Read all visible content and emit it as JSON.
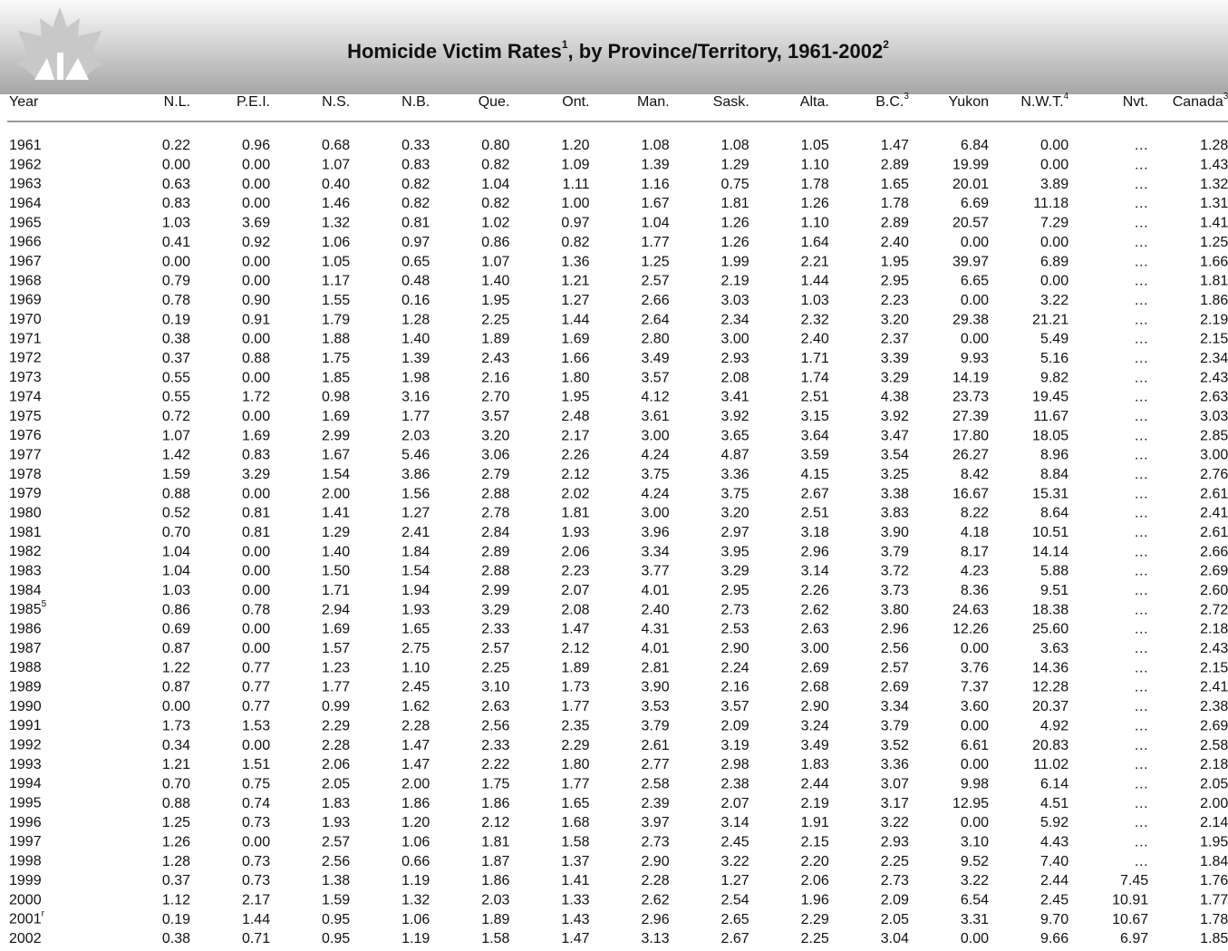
{
  "header": {
    "title": "Homicide Victim Rates",
    "title_note": "1",
    "title_rest": ", by Province/Territory, 1961-2002",
    "title_rest_note": "2"
  },
  "table": {
    "columns": [
      {
        "label": "Year"
      },
      {
        "label": "N.L."
      },
      {
        "label": "P.E.I."
      },
      {
        "label": "N.S."
      },
      {
        "label": "N.B."
      },
      {
        "label": "Que."
      },
      {
        "label": "Ont."
      },
      {
        "label": "Man."
      },
      {
        "label": "Sask."
      },
      {
        "label": "Alta."
      },
      {
        "label": "B.C.",
        "note": "3"
      },
      {
        "label": "Yukon"
      },
      {
        "label": "N.W.T.",
        "note": "4"
      },
      {
        "label": "Nvt."
      },
      {
        "label": "Canada",
        "note": "3"
      }
    ],
    "rows": [
      {
        "year": "1961",
        "cells": [
          "0.22",
          "0.96",
          "0.68",
          "0.33",
          "0.80",
          "1.20",
          "1.08",
          "1.08",
          "1.05",
          "1.47",
          "6.84",
          "0.00",
          "…",
          "1.28"
        ]
      },
      {
        "year": "1962",
        "cells": [
          "0.00",
          "0.00",
          "1.07",
          "0.83",
          "0.82",
          "1.09",
          "1.39",
          "1.29",
          "1.10",
          "2.89",
          "19.99",
          "0.00",
          "…",
          "1.43"
        ]
      },
      {
        "year": "1963",
        "cells": [
          "0.63",
          "0.00",
          "0.40",
          "0.82",
          "1.04",
          "1.11",
          "1.16",
          "0.75",
          "1.78",
          "1.65",
          "20.01",
          "3.89",
          "…",
          "1.32"
        ]
      },
      {
        "year": "1964",
        "cells": [
          "0.83",
          "0.00",
          "1.46",
          "0.82",
          "0.82",
          "1.00",
          "1.67",
          "1.81",
          "1.26",
          "1.78",
          "6.69",
          "11.18",
          "…",
          "1.31"
        ]
      },
      {
        "year": "1965",
        "cells": [
          "1.03",
          "3.69",
          "1.32",
          "0.81",
          "1.02",
          "0.97",
          "1.04",
          "1.26",
          "1.10",
          "2.89",
          "20.57",
          "7.29",
          "…",
          "1.41"
        ]
      },
      {
        "year": "1966",
        "cells": [
          "0.41",
          "0.92",
          "1.06",
          "0.97",
          "0.86",
          "0.82",
          "1.77",
          "1.26",
          "1.64",
          "2.40",
          "0.00",
          "0.00",
          "…",
          "1.25"
        ]
      },
      {
        "year": "1967",
        "cells": [
          "0.00",
          "0.00",
          "1.05",
          "0.65",
          "1.07",
          "1.36",
          "1.25",
          "1.99",
          "2.21",
          "1.95",
          "39.97",
          "6.89",
          "…",
          "1.66"
        ]
      },
      {
        "year": "1968",
        "cells": [
          "0.79",
          "0.00",
          "1.17",
          "0.48",
          "1.40",
          "1.21",
          "2.57",
          "2.19",
          "1.44",
          "2.95",
          "6.65",
          "0.00",
          "…",
          "1.81"
        ]
      },
      {
        "year": "1969",
        "cells": [
          "0.78",
          "0.90",
          "1.55",
          "0.16",
          "1.95",
          "1.27",
          "2.66",
          "3.03",
          "1.03",
          "2.23",
          "0.00",
          "3.22",
          "…",
          "1.86"
        ]
      },
      {
        "year": "1970",
        "cells": [
          "0.19",
          "0.91",
          "1.79",
          "1.28",
          "2.25",
          "1.44",
          "2.64",
          "2.34",
          "2.32",
          "3.20",
          "29.38",
          "21.21",
          "…",
          "2.19"
        ]
      },
      {
        "year": "1971",
        "cells": [
          "0.38",
          "0.00",
          "1.88",
          "1.40",
          "1.89",
          "1.69",
          "2.80",
          "3.00",
          "2.40",
          "2.37",
          "0.00",
          "5.49",
          "…",
          "2.15"
        ]
      },
      {
        "year": "1972",
        "cells": [
          "0.37",
          "0.88",
          "1.75",
          "1.39",
          "2.43",
          "1.66",
          "3.49",
          "2.93",
          "1.71",
          "3.39",
          "9.93",
          "5.16",
          "…",
          "2.34"
        ]
      },
      {
        "year": "1973",
        "cells": [
          "0.55",
          "0.00",
          "1.85",
          "1.98",
          "2.16",
          "1.80",
          "3.57",
          "2.08",
          "1.74",
          "3.29",
          "14.19",
          "9.82",
          "…",
          "2.43"
        ]
      },
      {
        "year": "1974",
        "cells": [
          "0.55",
          "1.72",
          "0.98",
          "3.16",
          "2.70",
          "1.95",
          "4.12",
          "3.41",
          "2.51",
          "4.38",
          "23.73",
          "19.45",
          "…",
          "2.63"
        ]
      },
      {
        "year": "1975",
        "cells": [
          "0.72",
          "0.00",
          "1.69",
          "1.77",
          "3.57",
          "2.48",
          "3.61",
          "3.92",
          "3.15",
          "3.92",
          "27.39",
          "11.67",
          "…",
          "3.03"
        ]
      },
      {
        "year": "1976",
        "cells": [
          "1.07",
          "1.69",
          "2.99",
          "2.03",
          "3.20",
          "2.17",
          "3.00",
          "3.65",
          "3.64",
          "3.47",
          "17.80",
          "18.05",
          "…",
          "2.85"
        ]
      },
      {
        "year": "1977",
        "cells": [
          "1.42",
          "0.83",
          "1.67",
          "5.46",
          "3.06",
          "2.26",
          "4.24",
          "4.87",
          "3.59",
          "3.54",
          "26.27",
          "8.96",
          "…",
          "3.00"
        ]
      },
      {
        "year": "1978",
        "cells": [
          "1.59",
          "3.29",
          "1.54",
          "3.86",
          "2.79",
          "2.12",
          "3.75",
          "3.36",
          "4.15",
          "3.25",
          "8.42",
          "8.84",
          "…",
          "2.76"
        ]
      },
      {
        "year": "1979",
        "cells": [
          "0.88",
          "0.00",
          "2.00",
          "1.56",
          "2.88",
          "2.02",
          "4.24",
          "3.75",
          "2.67",
          "3.38",
          "16.67",
          "15.31",
          "…",
          "2.61"
        ]
      },
      {
        "year": "1980",
        "cells": [
          "0.52",
          "0.81",
          "1.41",
          "1.27",
          "2.78",
          "1.81",
          "3.00",
          "3.20",
          "2.51",
          "3.83",
          "8.22",
          "8.64",
          "…",
          "2.41"
        ]
      },
      {
        "year": "1981",
        "cells": [
          "0.70",
          "0.81",
          "1.29",
          "2.41",
          "2.84",
          "1.93",
          "3.96",
          "2.97",
          "3.18",
          "3.90",
          "4.18",
          "10.51",
          "…",
          "2.61"
        ]
      },
      {
        "year": "1982",
        "cells": [
          "1.04",
          "0.00",
          "1.40",
          "1.84",
          "2.89",
          "2.06",
          "3.34",
          "3.95",
          "2.96",
          "3.79",
          "8.17",
          "14.14",
          "…",
          "2.66"
        ]
      },
      {
        "year": "1983",
        "cells": [
          "1.04",
          "0.00",
          "1.50",
          "1.54",
          "2.88",
          "2.23",
          "3.77",
          "3.29",
          "3.14",
          "3.72",
          "4.23",
          "5.88",
          "…",
          "2.69"
        ]
      },
      {
        "year": "1984",
        "cells": [
          "1.03",
          "0.00",
          "1.71",
          "1.94",
          "2.99",
          "2.07",
          "4.01",
          "2.95",
          "2.26",
          "3.73",
          "8.36",
          "9.51",
          "…",
          "2.60"
        ]
      },
      {
        "year": "1985",
        "note": "5",
        "cells": [
          "0.86",
          "0.78",
          "2.94",
          "1.93",
          "3.29",
          "2.08",
          "2.40",
          "2.73",
          "2.62",
          "3.80",
          "24.63",
          "18.38",
          "…",
          "2.72"
        ]
      },
      {
        "year": "1986",
        "cells": [
          "0.69",
          "0.00",
          "1.69",
          "1.65",
          "2.33",
          "1.47",
          "4.31",
          "2.53",
          "2.63",
          "2.96",
          "12.26",
          "25.60",
          "…",
          "2.18"
        ]
      },
      {
        "year": "1987",
        "cells": [
          "0.87",
          "0.00",
          "1.57",
          "2.75",
          "2.57",
          "2.12",
          "4.01",
          "2.90",
          "3.00",
          "2.56",
          "0.00",
          "3.63",
          "…",
          "2.43"
        ]
      },
      {
        "year": "1988",
        "cells": [
          "1.22",
          "0.77",
          "1.23",
          "1.10",
          "2.25",
          "1.89",
          "2.81",
          "2.24",
          "2.69",
          "2.57",
          "3.76",
          "14.36",
          "…",
          "2.15"
        ]
      },
      {
        "year": "1989",
        "cells": [
          "0.87",
          "0.77",
          "1.77",
          "2.45",
          "3.10",
          "1.73",
          "3.90",
          "2.16",
          "2.68",
          "2.69",
          "7.37",
          "12.28",
          "…",
          "2.41"
        ]
      },
      {
        "year": "1990",
        "cells": [
          "0.00",
          "0.77",
          "0.99",
          "1.62",
          "2.63",
          "1.77",
          "3.53",
          "3.57",
          "2.90",
          "3.34",
          "3.60",
          "20.37",
          "…",
          "2.38"
        ]
      },
      {
        "year": "1991",
        "cells": [
          "1.73",
          "1.53",
          "2.29",
          "2.28",
          "2.56",
          "2.35",
          "3.79",
          "2.09",
          "3.24",
          "3.79",
          "0.00",
          "4.92",
          "…",
          "2.69"
        ]
      },
      {
        "year": "1992",
        "cells": [
          "0.34",
          "0.00",
          "2.28",
          "1.47",
          "2.33",
          "2.29",
          "2.61",
          "3.19",
          "3.49",
          "3.52",
          "6.61",
          "20.83",
          "…",
          "2.58"
        ]
      },
      {
        "year": "1993",
        "cells": [
          "1.21",
          "1.51",
          "2.06",
          "1.47",
          "2.22",
          "1.80",
          "2.77",
          "2.98",
          "1.83",
          "3.36",
          "0.00",
          "11.02",
          "…",
          "2.18"
        ]
      },
      {
        "year": "1994",
        "cells": [
          "0.70",
          "0.75",
          "2.05",
          "2.00",
          "1.75",
          "1.77",
          "2.58",
          "2.38",
          "2.44",
          "3.07",
          "9.98",
          "6.14",
          "…",
          "2.05"
        ]
      },
      {
        "year": "1995",
        "cells": [
          "0.88",
          "0.74",
          "1.83",
          "1.86",
          "1.86",
          "1.65",
          "2.39",
          "2.07",
          "2.19",
          "3.17",
          "12.95",
          "4.51",
          "…",
          "2.00"
        ]
      },
      {
        "year": "1996",
        "cells": [
          "1.25",
          "0.73",
          "1.93",
          "1.20",
          "2.12",
          "1.68",
          "3.97",
          "3.14",
          "1.91",
          "3.22",
          "0.00",
          "5.92",
          "…",
          "2.14"
        ]
      },
      {
        "year": "1997",
        "cells": [
          "1.26",
          "0.00",
          "2.57",
          "1.06",
          "1.81",
          "1.58",
          "2.73",
          "2.45",
          "2.15",
          "2.93",
          "3.10",
          "4.43",
          "…",
          "1.95"
        ]
      },
      {
        "year": "1998",
        "cells": [
          "1.28",
          "0.73",
          "2.56",
          "0.66",
          "1.87",
          "1.37",
          "2.90",
          "3.22",
          "2.20",
          "2.25",
          "9.52",
          "7.40",
          "…",
          "1.84"
        ]
      },
      {
        "year": "1999",
        "cells": [
          "0.37",
          "0.73",
          "1.38",
          "1.19",
          "1.86",
          "1.41",
          "2.28",
          "1.27",
          "2.06",
          "2.73",
          "3.22",
          "2.44",
          "7.45",
          "1.76"
        ]
      },
      {
        "year": "2000",
        "cells": [
          "1.12",
          "2.17",
          "1.59",
          "1.32",
          "2.03",
          "1.33",
          "2.62",
          "2.54",
          "1.96",
          "2.09",
          "6.54",
          "2.45",
          "10.91",
          "1.77"
        ]
      },
      {
        "year": "2001",
        "note": "r",
        "cells": [
          "0.19",
          "1.44",
          "0.95",
          "1.06",
          "1.89",
          "1.43",
          "2.96",
          "2.65",
          "2.29",
          "2.05",
          "3.31",
          "9.70",
          "10.67",
          "1.78"
        ]
      },
      {
        "year": "2002",
        "cells": [
          "0.38",
          "0.71",
          "0.95",
          "1.19",
          "1.58",
          "1.47",
          "3.13",
          "2.67",
          "2.25",
          "3.04",
          "0.00",
          "9.66",
          "6.97",
          "1.85"
        ]
      }
    ]
  }
}
